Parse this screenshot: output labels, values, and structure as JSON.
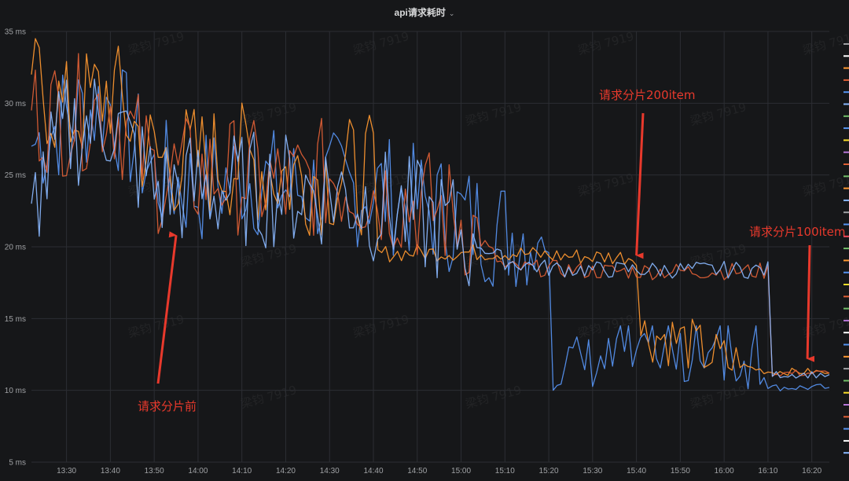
{
  "panel": {
    "title": "api请求耗时",
    "dropdown_icon": "chevron-down-icon"
  },
  "watermark_text": "梁钧 7919",
  "chart_data": {
    "type": "line",
    "title": "api请求耗时",
    "y_unit": "ms",
    "ylim": [
      5,
      35
    ],
    "yticks": [
      5,
      10,
      15,
      20,
      25,
      30,
      35
    ],
    "ytick_labels": [
      "5 ms",
      "10 ms",
      "15 ms",
      "20 ms",
      "25 ms",
      "30 ms",
      "35 ms"
    ],
    "xlim": [
      "13:22",
      "16:24"
    ],
    "xtick_labels": [
      "13:30",
      "13:40",
      "13:50",
      "14:00",
      "14:10",
      "14:20",
      "14:30",
      "14:40",
      "14:50",
      "15:00",
      "15:10",
      "15:20",
      "15:30",
      "15:40",
      "15:50",
      "16:00",
      "16:10",
      "16:20"
    ],
    "grid": true,
    "legend": "right (color swatches only)",
    "series": [
      {
        "color": "#5794f2",
        "x": [
          "13:22",
          "13:30",
          "13:40",
          "13:50",
          "14:00",
          "14:10",
          "14:20",
          "14:30",
          "14:40",
          "14:50",
          "15:00",
          "15:10",
          "15:15",
          "15:20",
          "15:21",
          "15:30",
          "15:40",
          "15:50",
          "16:00",
          "16:10",
          "16:11",
          "16:20",
          "16:24"
        ],
        "y": [
          27,
          29,
          30,
          25,
          24,
          25,
          24,
          24,
          24,
          23,
          22,
          21,
          21,
          20,
          12,
          12,
          12,
          12,
          12,
          12,
          10.2,
          10.2,
          10.2
        ]
      },
      {
        "color": "#ff9830",
        "x": [
          "13:22",
          "13:30",
          "13:40",
          "13:50",
          "14:00",
          "14:10",
          "14:20",
          "14:30",
          "14:40",
          "14:41",
          "14:50",
          "15:00",
          "15:10",
          "15:20",
          "15:30",
          "15:40",
          "15:41",
          "15:50",
          "16:00",
          "16:10",
          "16:20",
          "16:24"
        ],
        "y": [
          32,
          29,
          31,
          26,
          26,
          26,
          25,
          25,
          25,
          19.5,
          19.6,
          19.6,
          19.6,
          19.4,
          19.3,
          19.3,
          14,
          13.5,
          12,
          11.3,
          11.3,
          11.2
        ]
      },
      {
        "color": "#e05f35",
        "x": [
          "13:22",
          "13:30",
          "13:40",
          "13:50",
          "14:00",
          "14:10",
          "14:20",
          "14:30",
          "14:40",
          "14:50",
          "15:00",
          "15:10",
          "15:20",
          "15:30",
          "15:40",
          "15:50",
          "16:00",
          "16:10",
          "16:11",
          "16:20",
          "16:24"
        ],
        "y": [
          29.5,
          29,
          30,
          25,
          25,
          25,
          24,
          25,
          24,
          23,
          22,
          18.5,
          18.5,
          18.3,
          18.3,
          18.3,
          18.3,
          18.3,
          11.2,
          11.2,
          11.2
        ]
      },
      {
        "color": "#8ab8ff",
        "x": [
          "13:22",
          "13:30",
          "13:40",
          "13:50",
          "14:00",
          "14:10",
          "14:20",
          "14:30",
          "14:40",
          "14:50",
          "15:00",
          "15:10",
          "15:20",
          "15:30",
          "15:40",
          "15:50",
          "16:00",
          "16:10",
          "16:11",
          "16:20",
          "16:24"
        ],
        "y": [
          23,
          28,
          29,
          24,
          24,
          24,
          24,
          24,
          23,
          22,
          21,
          19,
          18.5,
          18.4,
          18.4,
          18.4,
          18.4,
          18.4,
          11.1,
          11.1,
          11.1
        ]
      }
    ],
    "annotations": [
      {
        "text": "请求分片前",
        "arrow_to": [
          "13:55",
          20.8
        ]
      },
      {
        "text": "请求分片200item",
        "arrow_to": [
          "15:40",
          19.4
        ]
      },
      {
        "text": "请求分片100item",
        "arrow_to": [
          "16:19",
          12.2
        ]
      }
    ]
  },
  "legend_swatches": [
    "#9fa1a4",
    "#ffffff",
    "#ff9830",
    "#e05f35",
    "#5794f2",
    "#8ab8ff",
    "#73bf69",
    "#5794f2",
    "#fade2a",
    "#b877d9",
    "#e05f35",
    "#73bf69",
    "#ff9830",
    "#8ab8ff",
    "#9fa1a4",
    "#5794f2",
    "#f2495c",
    "#73bf69",
    "#ff9830",
    "#5794f2",
    "#fade2a",
    "#e05f35",
    "#73bf69",
    "#b877d9",
    "#ffffff",
    "#5794f2",
    "#ff9830",
    "#9fa1a4",
    "#73bf69",
    "#fade2a",
    "#b877d9",
    "#e05f35",
    "#5794f2",
    "#ffffff",
    "#8ab8ff"
  ]
}
